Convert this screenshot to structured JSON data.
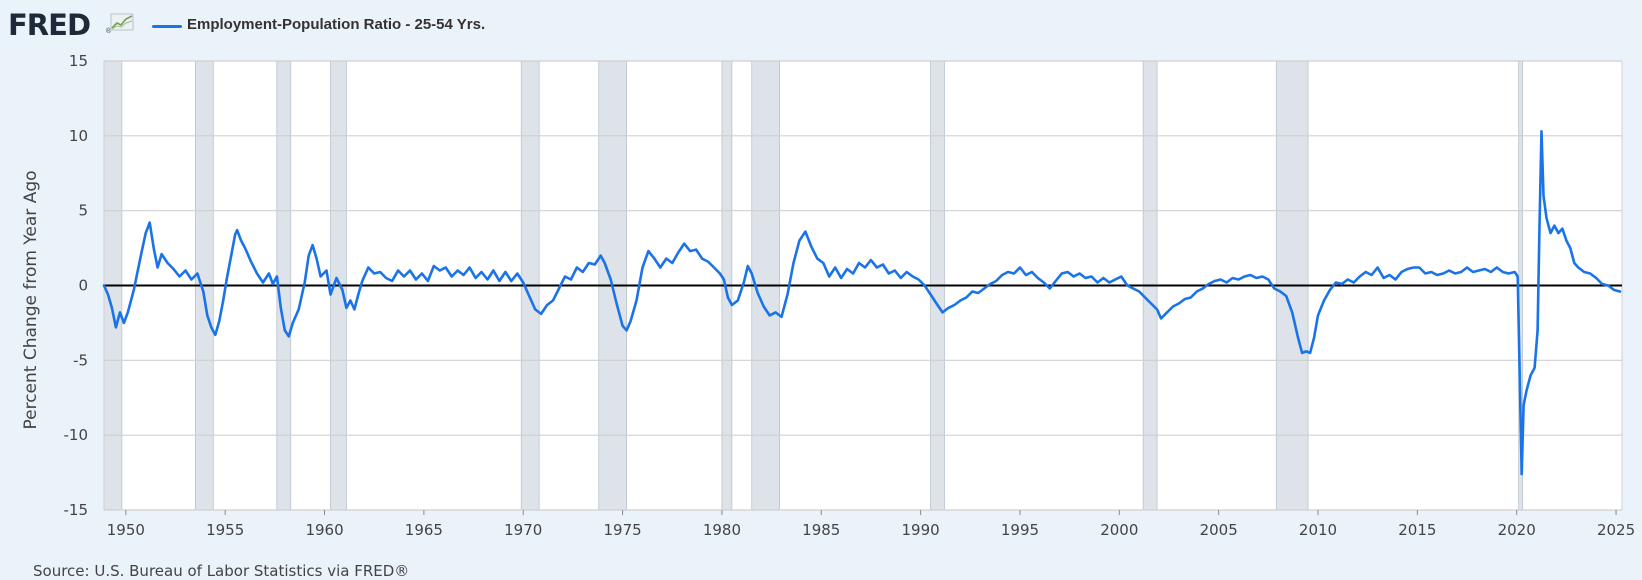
{
  "header": {
    "logo_text": "FRED",
    "logo_mark": "®",
    "logo_icon": "line-graph-icon"
  },
  "colors": {
    "series": "#1a73e8",
    "recession": "#dde3e9",
    "background": "#eaf2fa",
    "plot": "#ffffff",
    "grid": "#d0d0d0",
    "zero_line": "#000000"
  },
  "chart_data": {
    "type": "line",
    "title": "",
    "legend_position": "top-left",
    "ylabel": "Percent Change from Year Ago",
    "ylim": [
      -15,
      15
    ],
    "xlim": [
      1948.9,
      2025.3
    ],
    "yticks": [
      -15,
      -10,
      -5,
      0,
      5,
      10,
      15
    ],
    "xticks": [
      1950,
      1955,
      1960,
      1965,
      1970,
      1975,
      1980,
      1985,
      1990,
      1995,
      2000,
      2005,
      2010,
      2015,
      2020,
      2025
    ],
    "grid": true,
    "zero_line": true,
    "recessions": [
      [
        1948.9,
        1949.8
      ],
      [
        1953.5,
        1954.4
      ],
      [
        1957.6,
        1958.3
      ],
      [
        1960.3,
        1961.1
      ],
      [
        1969.9,
        1970.8
      ],
      [
        1973.8,
        1975.2
      ],
      [
        1980.0,
        1980.5
      ],
      [
        1981.5,
        1982.9
      ],
      [
        1990.5,
        1991.2
      ],
      [
        2001.2,
        2001.9
      ],
      [
        2007.9,
        2009.5
      ],
      [
        2020.1,
        2020.3
      ]
    ],
    "series": [
      {
        "name": "Employment-Population Ratio - 25-54 Yrs.",
        "points": [
          [
            1948.9,
            0.0
          ],
          [
            1949.1,
            -0.6
          ],
          [
            1949.3,
            -1.5
          ],
          [
            1949.5,
            -2.8
          ],
          [
            1949.7,
            -1.8
          ],
          [
            1949.9,
            -2.5
          ],
          [
            1950.1,
            -1.8
          ],
          [
            1950.4,
            -0.3
          ],
          [
            1950.6,
            1.0
          ],
          [
            1950.8,
            2.3
          ],
          [
            1951.0,
            3.5
          ],
          [
            1951.2,
            4.2
          ],
          [
            1951.4,
            2.5
          ],
          [
            1951.6,
            1.2
          ],
          [
            1951.8,
            2.1
          ],
          [
            1952.1,
            1.5
          ],
          [
            1952.4,
            1.1
          ],
          [
            1952.7,
            0.6
          ],
          [
            1953.0,
            1.0
          ],
          [
            1953.3,
            0.4
          ],
          [
            1953.6,
            0.8
          ],
          [
            1953.9,
            -0.4
          ],
          [
            1954.1,
            -2.0
          ],
          [
            1954.3,
            -2.8
          ],
          [
            1954.5,
            -3.3
          ],
          [
            1954.7,
            -2.4
          ],
          [
            1954.9,
            -1.0
          ],
          [
            1955.1,
            0.6
          ],
          [
            1955.3,
            2.0
          ],
          [
            1955.5,
            3.4
          ],
          [
            1955.6,
            3.7
          ],
          [
            1955.8,
            3.0
          ],
          [
            1956.0,
            2.5
          ],
          [
            1956.3,
            1.6
          ],
          [
            1956.6,
            0.8
          ],
          [
            1956.9,
            0.2
          ],
          [
            1957.2,
            0.8
          ],
          [
            1957.4,
            0.1
          ],
          [
            1957.6,
            0.6
          ],
          [
            1957.8,
            -1.5
          ],
          [
            1958.0,
            -3.0
          ],
          [
            1958.2,
            -3.4
          ],
          [
            1958.4,
            -2.5
          ],
          [
            1958.7,
            -1.6
          ],
          [
            1959.0,
            0.2
          ],
          [
            1959.2,
            2.0
          ],
          [
            1959.4,
            2.7
          ],
          [
            1959.6,
            1.8
          ],
          [
            1959.8,
            0.6
          ],
          [
            1960.1,
            1.0
          ],
          [
            1960.3,
            -0.6
          ],
          [
            1960.6,
            0.5
          ],
          [
            1960.9,
            -0.3
          ],
          [
            1961.1,
            -1.5
          ],
          [
            1961.3,
            -1.0
          ],
          [
            1961.5,
            -1.6
          ],
          [
            1961.7,
            -0.6
          ],
          [
            1961.9,
            0.3
          ],
          [
            1962.2,
            1.2
          ],
          [
            1962.5,
            0.8
          ],
          [
            1962.8,
            0.9
          ],
          [
            1963.1,
            0.5
          ],
          [
            1963.4,
            0.3
          ],
          [
            1963.7,
            1.0
          ],
          [
            1964.0,
            0.6
          ],
          [
            1964.3,
            1.0
          ],
          [
            1964.6,
            0.4
          ],
          [
            1964.9,
            0.8
          ],
          [
            1965.2,
            0.3
          ],
          [
            1965.5,
            1.3
          ],
          [
            1965.8,
            1.0
          ],
          [
            1966.1,
            1.2
          ],
          [
            1966.4,
            0.6
          ],
          [
            1966.7,
            1.0
          ],
          [
            1967.0,
            0.7
          ],
          [
            1967.3,
            1.2
          ],
          [
            1967.6,
            0.5
          ],
          [
            1967.9,
            0.9
          ],
          [
            1968.2,
            0.4
          ],
          [
            1968.5,
            1.0
          ],
          [
            1968.8,
            0.3
          ],
          [
            1969.1,
            0.9
          ],
          [
            1969.4,
            0.3
          ],
          [
            1969.7,
            0.8
          ],
          [
            1970.0,
            0.2
          ],
          [
            1970.3,
            -0.7
          ],
          [
            1970.6,
            -1.6
          ],
          [
            1970.9,
            -1.9
          ],
          [
            1971.2,
            -1.3
          ],
          [
            1971.5,
            -1.0
          ],
          [
            1971.8,
            -0.2
          ],
          [
            1972.1,
            0.6
          ],
          [
            1972.4,
            0.4
          ],
          [
            1972.7,
            1.2
          ],
          [
            1973.0,
            0.9
          ],
          [
            1973.3,
            1.5
          ],
          [
            1973.6,
            1.4
          ],
          [
            1973.9,
            2.0
          ],
          [
            1974.1,
            1.5
          ],
          [
            1974.4,
            0.4
          ],
          [
            1974.7,
            -1.2
          ],
          [
            1975.0,
            -2.7
          ],
          [
            1975.2,
            -3.0
          ],
          [
            1975.4,
            -2.4
          ],
          [
            1975.7,
            -1.0
          ],
          [
            1976.0,
            1.2
          ],
          [
            1976.3,
            2.3
          ],
          [
            1976.6,
            1.8
          ],
          [
            1976.9,
            1.2
          ],
          [
            1977.2,
            1.8
          ],
          [
            1977.5,
            1.5
          ],
          [
            1977.8,
            2.2
          ],
          [
            1978.1,
            2.8
          ],
          [
            1978.4,
            2.3
          ],
          [
            1978.7,
            2.4
          ],
          [
            1979.0,
            1.8
          ],
          [
            1979.3,
            1.6
          ],
          [
            1979.6,
            1.2
          ],
          [
            1979.9,
            0.8
          ],
          [
            1980.1,
            0.4
          ],
          [
            1980.3,
            -0.8
          ],
          [
            1980.5,
            -1.3
          ],
          [
            1980.8,
            -1.0
          ],
          [
            1981.1,
            0.2
          ],
          [
            1981.3,
            1.3
          ],
          [
            1981.5,
            0.8
          ],
          [
            1981.8,
            -0.5
          ],
          [
            1982.1,
            -1.4
          ],
          [
            1982.4,
            -2.0
          ],
          [
            1982.7,
            -1.8
          ],
          [
            1983.0,
            -2.1
          ],
          [
            1983.3,
            -0.6
          ],
          [
            1983.6,
            1.5
          ],
          [
            1983.9,
            3.0
          ],
          [
            1984.2,
            3.6
          ],
          [
            1984.5,
            2.6
          ],
          [
            1984.8,
            1.8
          ],
          [
            1985.1,
            1.5
          ],
          [
            1985.4,
            0.6
          ],
          [
            1985.7,
            1.2
          ],
          [
            1986.0,
            0.5
          ],
          [
            1986.3,
            1.1
          ],
          [
            1986.6,
            0.8
          ],
          [
            1986.9,
            1.5
          ],
          [
            1987.2,
            1.2
          ],
          [
            1987.5,
            1.7
          ],
          [
            1987.8,
            1.2
          ],
          [
            1988.1,
            1.4
          ],
          [
            1988.4,
            0.8
          ],
          [
            1988.7,
            1.0
          ],
          [
            1989.0,
            0.5
          ],
          [
            1989.3,
            0.9
          ],
          [
            1989.6,
            0.6
          ],
          [
            1989.9,
            0.4
          ],
          [
            1990.2,
            0.0
          ],
          [
            1990.5,
            -0.6
          ],
          [
            1990.8,
            -1.2
          ],
          [
            1991.1,
            -1.8
          ],
          [
            1991.4,
            -1.5
          ],
          [
            1991.7,
            -1.3
          ],
          [
            1992.0,
            -1.0
          ],
          [
            1992.3,
            -0.8
          ],
          [
            1992.6,
            -0.4
          ],
          [
            1992.9,
            -0.5
          ],
          [
            1993.2,
            -0.2
          ],
          [
            1993.5,
            0.1
          ],
          [
            1993.8,
            0.3
          ],
          [
            1994.1,
            0.7
          ],
          [
            1994.4,
            0.9
          ],
          [
            1994.7,
            0.8
          ],
          [
            1995.0,
            1.2
          ],
          [
            1995.3,
            0.7
          ],
          [
            1995.6,
            0.9
          ],
          [
            1995.9,
            0.5
          ],
          [
            1996.2,
            0.2
          ],
          [
            1996.5,
            -0.2
          ],
          [
            1996.8,
            0.3
          ],
          [
            1997.1,
            0.8
          ],
          [
            1997.4,
            0.9
          ],
          [
            1997.7,
            0.6
          ],
          [
            1998.0,
            0.8
          ],
          [
            1998.3,
            0.5
          ],
          [
            1998.6,
            0.6
          ],
          [
            1998.9,
            0.2
          ],
          [
            1999.2,
            0.5
          ],
          [
            1999.5,
            0.2
          ],
          [
            1999.8,
            0.4
          ],
          [
            2000.1,
            0.6
          ],
          [
            2000.4,
            0.0
          ],
          [
            2000.7,
            -0.2
          ],
          [
            2001.0,
            -0.4
          ],
          [
            2001.3,
            -0.8
          ],
          [
            2001.6,
            -1.2
          ],
          [
            2001.9,
            -1.6
          ],
          [
            2002.1,
            -2.2
          ],
          [
            2002.4,
            -1.8
          ],
          [
            2002.7,
            -1.4
          ],
          [
            2003.0,
            -1.2
          ],
          [
            2003.3,
            -0.9
          ],
          [
            2003.6,
            -0.8
          ],
          [
            2003.9,
            -0.4
          ],
          [
            2004.2,
            -0.2
          ],
          [
            2004.5,
            0.1
          ],
          [
            2004.8,
            0.3
          ],
          [
            2005.1,
            0.4
          ],
          [
            2005.4,
            0.2
          ],
          [
            2005.7,
            0.5
          ],
          [
            2006.0,
            0.4
          ],
          [
            2006.3,
            0.6
          ],
          [
            2006.6,
            0.7
          ],
          [
            2006.9,
            0.5
          ],
          [
            2007.2,
            0.6
          ],
          [
            2007.5,
            0.4
          ],
          [
            2007.8,
            -0.2
          ],
          [
            2008.1,
            -0.4
          ],
          [
            2008.4,
            -0.7
          ],
          [
            2008.7,
            -1.8
          ],
          [
            2009.0,
            -3.5
          ],
          [
            2009.2,
            -4.5
          ],
          [
            2009.4,
            -4.4
          ],
          [
            2009.6,
            -4.5
          ],
          [
            2009.8,
            -3.5
          ],
          [
            2010.0,
            -2.0
          ],
          [
            2010.3,
            -1.0
          ],
          [
            2010.6,
            -0.3
          ],
          [
            2010.9,
            0.2
          ],
          [
            2011.2,
            0.1
          ],
          [
            2011.5,
            0.4
          ],
          [
            2011.8,
            0.2
          ],
          [
            2012.1,
            0.6
          ],
          [
            2012.4,
            0.9
          ],
          [
            2012.7,
            0.7
          ],
          [
            2013.0,
            1.2
          ],
          [
            2013.3,
            0.5
          ],
          [
            2013.6,
            0.7
          ],
          [
            2013.9,
            0.4
          ],
          [
            2014.2,
            0.9
          ],
          [
            2014.5,
            1.1
          ],
          [
            2014.8,
            1.2
          ],
          [
            2015.1,
            1.2
          ],
          [
            2015.4,
            0.8
          ],
          [
            2015.7,
            0.9
          ],
          [
            2016.0,
            0.7
          ],
          [
            2016.3,
            0.8
          ],
          [
            2016.6,
            1.0
          ],
          [
            2016.9,
            0.8
          ],
          [
            2017.2,
            0.9
          ],
          [
            2017.5,
            1.2
          ],
          [
            2017.8,
            0.9
          ],
          [
            2018.1,
            1.0
          ],
          [
            2018.4,
            1.1
          ],
          [
            2018.7,
            0.9
          ],
          [
            2019.0,
            1.2
          ],
          [
            2019.3,
            0.9
          ],
          [
            2019.6,
            0.8
          ],
          [
            2019.9,
            0.9
          ],
          [
            2020.05,
            0.6
          ],
          [
            2020.15,
            -6.0
          ],
          [
            2020.25,
            -12.6
          ],
          [
            2020.35,
            -8.0
          ],
          [
            2020.5,
            -7.0
          ],
          [
            2020.7,
            -6.0
          ],
          [
            2020.9,
            -5.5
          ],
          [
            2021.05,
            -3.0
          ],
          [
            2021.15,
            4.0
          ],
          [
            2021.25,
            10.3
          ],
          [
            2021.35,
            6.0
          ],
          [
            2021.5,
            4.5
          ],
          [
            2021.7,
            3.5
          ],
          [
            2021.9,
            4.0
          ],
          [
            2022.1,
            3.5
          ],
          [
            2022.3,
            3.8
          ],
          [
            2022.5,
            3.0
          ],
          [
            2022.7,
            2.5
          ],
          [
            2022.9,
            1.5
          ],
          [
            2023.1,
            1.2
          ],
          [
            2023.4,
            0.9
          ],
          [
            2023.7,
            0.8
          ],
          [
            2024.0,
            0.5
          ],
          [
            2024.3,
            0.1
          ],
          [
            2024.6,
            0.0
          ],
          [
            2024.9,
            -0.3
          ],
          [
            2025.2,
            -0.4
          ]
        ]
      }
    ]
  },
  "source": "Source: U.S. Bureau of Labor Statistics via FRED®"
}
